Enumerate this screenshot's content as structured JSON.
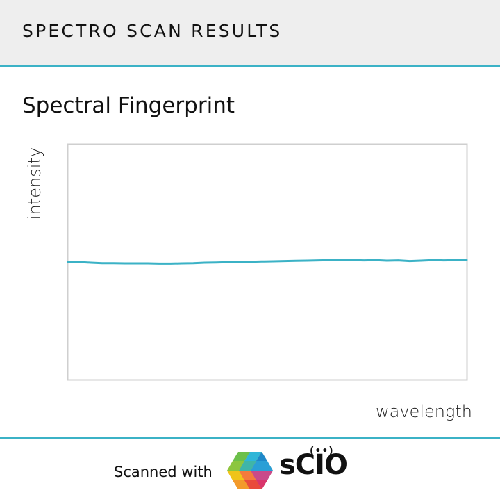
{
  "header": {
    "title": "SPECTRO SCAN RESULTS"
  },
  "chart_data": {
    "type": "line",
    "title": "Spectral Fingerprint",
    "xlabel": "wavelength",
    "ylabel": "intensity",
    "ylim": [
      0,
      1
    ],
    "grid": false,
    "legend": "none",
    "line_color": "#3bb2c6",
    "series": [
      {
        "y": [
          0.5,
          0.5,
          0.497,
          0.495,
          0.495,
          0.494,
          0.494,
          0.494,
          0.493,
          0.493,
          0.494,
          0.495,
          0.497,
          0.498,
          0.499,
          0.5,
          0.501,
          0.502,
          0.503,
          0.504,
          0.505,
          0.506,
          0.507,
          0.508,
          0.509,
          0.508,
          0.507,
          0.508,
          0.506,
          0.507,
          0.504,
          0.506,
          0.508,
          0.507,
          0.508,
          0.509
        ]
      }
    ]
  },
  "footer": {
    "scanned_with": "Scanned with",
    "brand": "sCIO",
    "brand_signal": "(••)"
  }
}
